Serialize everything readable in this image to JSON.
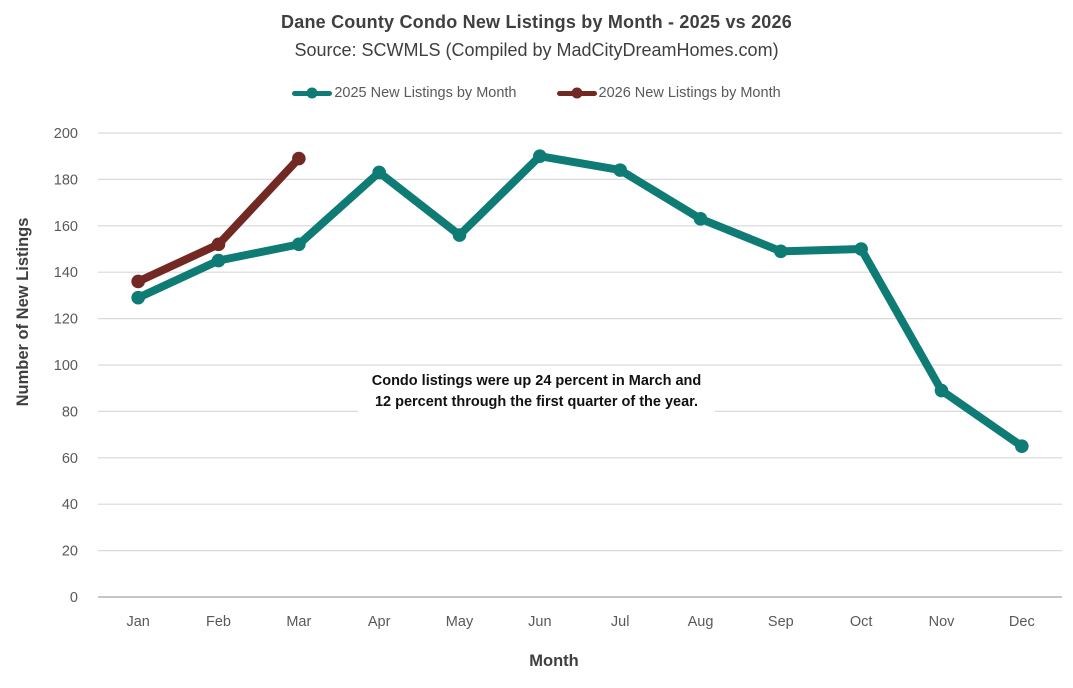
{
  "chart_data": {
    "type": "line",
    "title": "Dane County Condo New Listings by Month - 2025 vs 2026",
    "subtitle": "Source: SCWMLS (Compiled by MadCityDreamHomes.com)",
    "xlabel": "Month",
    "ylabel": "Number of New Listings",
    "categories": [
      "Jan",
      "Feb",
      "Mar",
      "Apr",
      "May",
      "Jun",
      "Jul",
      "Aug",
      "Sep",
      "Oct",
      "Nov",
      "Dec"
    ],
    "series": [
      {
        "name": "2025 New Listings by Month",
        "color": "#0e7b74",
        "values": [
          129,
          145,
          152,
          183,
          156,
          190,
          184,
          163,
          149,
          150,
          89,
          65
        ]
      },
      {
        "name": "2026 New Listings by Month",
        "color": "#722823",
        "values": [
          136,
          152,
          189
        ]
      }
    ],
    "ylim": [
      0,
      200
    ],
    "yticks": [
      0,
      20,
      40,
      60,
      80,
      100,
      120,
      140,
      160,
      180,
      200
    ],
    "grid": true,
    "legend_position": "top",
    "annotation": {
      "line1": "Condo listings were up 24 percent in March and",
      "line2": "12 percent through the first quarter of the year."
    }
  },
  "style": {
    "background": "#ffffff",
    "gridline_color": "#d9d9d9",
    "axis_line_color": "#b3b3b3",
    "tick_color": "#595959",
    "title_color": "#3f3f3f",
    "legend_text_color": "#595959",
    "annotation_color": "#111111"
  }
}
